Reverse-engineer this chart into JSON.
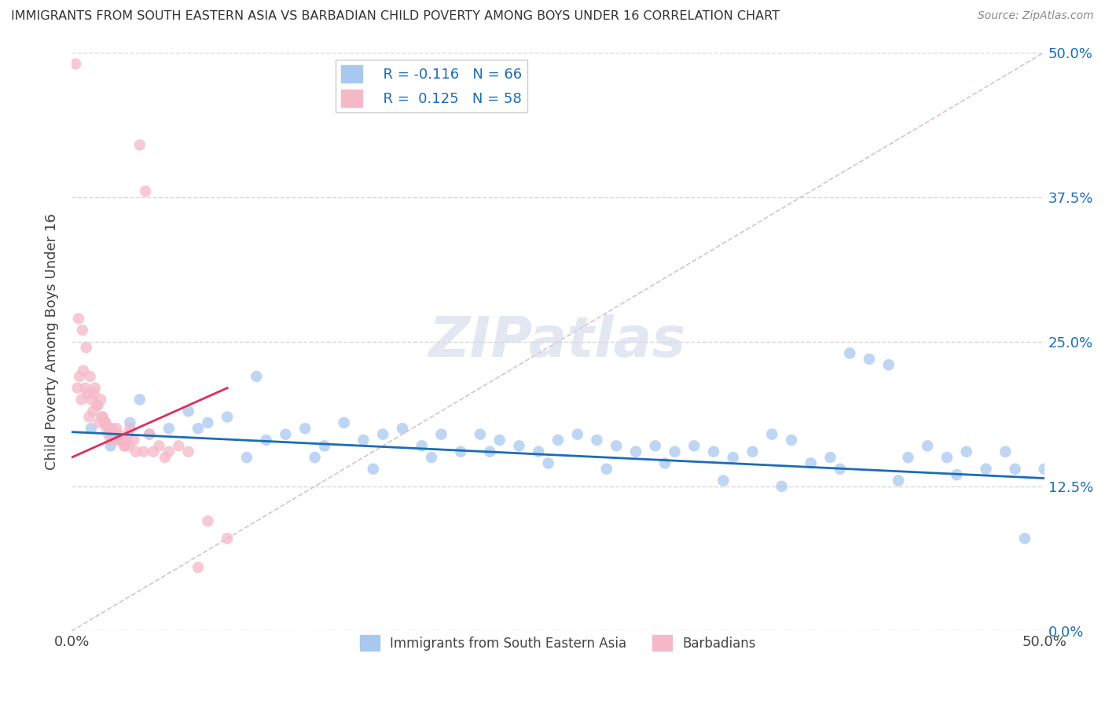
{
  "title": "IMMIGRANTS FROM SOUTH EASTERN ASIA VS BARBADIAN CHILD POVERTY AMONG BOYS UNDER 16 CORRELATION CHART",
  "source": "Source: ZipAtlas.com",
  "ylabel": "Child Poverty Among Boys Under 16",
  "ytick_labels": [
    "0.0%",
    "12.5%",
    "25.0%",
    "37.5%",
    "50.0%"
  ],
  "ytick_values": [
    0,
    12.5,
    25.0,
    37.5,
    50.0
  ],
  "legend_labels": [
    "Immigrants from South Eastern Asia",
    "Barbadians"
  ],
  "legend_R": [
    -0.116,
    0.125
  ],
  "legend_N": [
    66,
    58
  ],
  "blue_color": "#a8c8f0",
  "pink_color": "#f5b8c8",
  "blue_line_color": "#1a6db5",
  "pink_line_color": "#d93060",
  "watermark": "ZIPatlas",
  "blue_scatter_x": [
    1.0,
    2.0,
    3.0,
    4.0,
    5.0,
    6.0,
    7.0,
    8.0,
    9.0,
    10.0,
    11.0,
    12.0,
    13.0,
    14.0,
    15.0,
    16.0,
    17.0,
    18.0,
    19.0,
    20.0,
    21.0,
    22.0,
    23.0,
    24.0,
    25.0,
    26.0,
    27.0,
    28.0,
    29.0,
    30.0,
    31.0,
    32.0,
    33.0,
    34.0,
    35.0,
    36.0,
    37.0,
    38.0,
    39.0,
    40.0,
    41.0,
    42.0,
    43.0,
    44.0,
    45.0,
    46.0,
    47.0,
    48.0,
    49.0,
    50.0,
    3.5,
    6.5,
    9.5,
    12.5,
    15.5,
    18.5,
    21.5,
    24.5,
    27.5,
    30.5,
    33.5,
    36.5,
    39.5,
    42.5,
    45.5,
    48.5
  ],
  "blue_scatter_y": [
    17.5,
    16.0,
    18.0,
    17.0,
    17.5,
    19.0,
    18.0,
    18.5,
    15.0,
    16.5,
    17.0,
    17.5,
    16.0,
    18.0,
    16.5,
    17.0,
    17.5,
    16.0,
    17.0,
    15.5,
    17.0,
    16.5,
    16.0,
    15.5,
    16.5,
    17.0,
    16.5,
    16.0,
    15.5,
    16.0,
    15.5,
    16.0,
    15.5,
    15.0,
    15.5,
    17.0,
    16.5,
    14.5,
    15.0,
    24.0,
    23.5,
    23.0,
    15.0,
    16.0,
    15.0,
    15.5,
    14.0,
    15.5,
    8.0,
    14.0,
    20.0,
    17.5,
    22.0,
    15.0,
    14.0,
    15.0,
    15.5,
    14.5,
    14.0,
    14.5,
    13.0,
    12.5,
    14.0,
    13.0,
    13.5,
    14.0
  ],
  "pink_scatter_x": [
    0.2,
    0.3,
    0.4,
    0.5,
    0.6,
    0.7,
    0.8,
    0.9,
    1.0,
    1.1,
    1.2,
    1.3,
    1.4,
    1.5,
    1.6,
    1.7,
    1.8,
    1.9,
    2.0,
    2.1,
    2.2,
    2.3,
    2.4,
    2.5,
    2.6,
    2.7,
    2.8,
    2.9,
    3.0,
    3.2,
    3.5,
    3.8,
    4.0,
    4.5,
    5.0,
    5.5,
    6.0,
    7.0,
    8.0,
    0.35,
    0.55,
    0.75,
    0.95,
    1.15,
    1.35,
    1.55,
    1.75,
    1.95,
    2.15,
    2.35,
    2.55,
    2.75,
    2.95,
    3.3,
    3.7,
    4.2,
    4.8,
    6.5
  ],
  "pink_scatter_y": [
    49.0,
    21.0,
    22.0,
    20.0,
    22.5,
    21.0,
    20.5,
    18.5,
    20.0,
    19.0,
    21.0,
    19.5,
    18.0,
    20.0,
    18.5,
    18.0,
    17.5,
    17.0,
    16.5,
    17.5,
    17.0,
    17.5,
    17.0,
    16.5,
    16.5,
    16.0,
    16.5,
    17.0,
    17.5,
    16.5,
    42.0,
    38.0,
    17.0,
    16.0,
    15.5,
    16.0,
    15.5,
    9.5,
    8.0,
    27.0,
    26.0,
    24.5,
    22.0,
    20.5,
    19.5,
    18.5,
    18.0,
    17.5,
    17.0,
    16.5,
    16.5,
    16.0,
    16.0,
    15.5,
    15.5,
    15.5,
    15.0,
    5.5
  ]
}
